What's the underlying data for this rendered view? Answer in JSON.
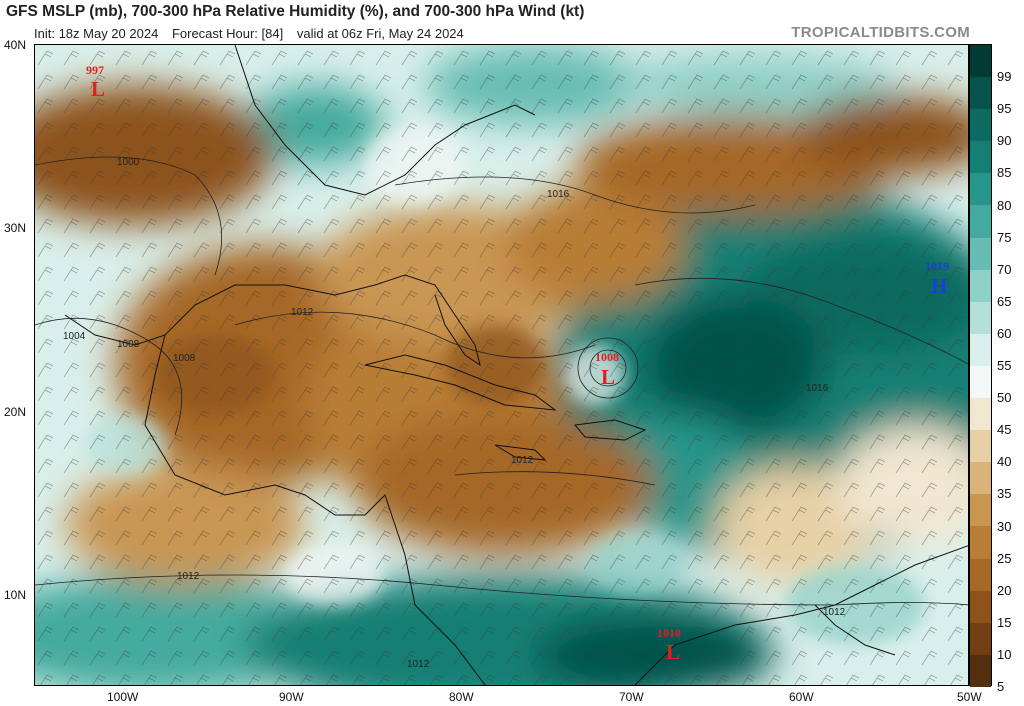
{
  "header": {
    "title": "GFS MSLP (mb), 700-300 hPa Relative Humidity (%), and 700-300 hPa Wind (kt)",
    "init": "Init: 18z May 20 2024",
    "forecast_hour": "Forecast Hour: [84]",
    "valid": "valid at 06z Fri, May 24 2024",
    "brand": "TROPICALTIDBITS.COM"
  },
  "axes": {
    "lat_labels": [
      "40N",
      "30N",
      "20N",
      "10N"
    ],
    "lon_labels": [
      "100W",
      "90W",
      "80W",
      "70W",
      "60W",
      "50W"
    ]
  },
  "colorbar": {
    "labels": [
      "99",
      "95",
      "90",
      "85",
      "80",
      "75",
      "70",
      "65",
      "60",
      "55",
      "50",
      "45",
      "40",
      "35",
      "30",
      "25",
      "20",
      "15",
      "10",
      "5"
    ],
    "colors": [
      "#023a34",
      "#06534b",
      "#0c6a60",
      "#157f74",
      "#27958a",
      "#44aa9f",
      "#67bdb3",
      "#8ecfc6",
      "#b5e0d9",
      "#d9efeb",
      "#f3f7f5",
      "#f1e6cf",
      "#e7d0a5",
      "#d9b37a",
      "#c99652",
      "#b87d36",
      "#a66826",
      "#8d531b",
      "#713f13",
      "#53300d"
    ]
  },
  "pressure_systems": [
    {
      "type": "L",
      "value": "997",
      "color": "#e02020"
    },
    {
      "type": "L",
      "value": "1008",
      "color": "#e02020"
    },
    {
      "type": "L",
      "value": "1010",
      "color": "#e02020"
    },
    {
      "type": "H",
      "value": "1019",
      "color": "#1a3fd8"
    }
  ],
  "isobar_labels": [
    "1000",
    "1016",
    "1012",
    "1004",
    "1008",
    "1008",
    "1016",
    "1012",
    "1012",
    "1012",
    "1012"
  ]
}
